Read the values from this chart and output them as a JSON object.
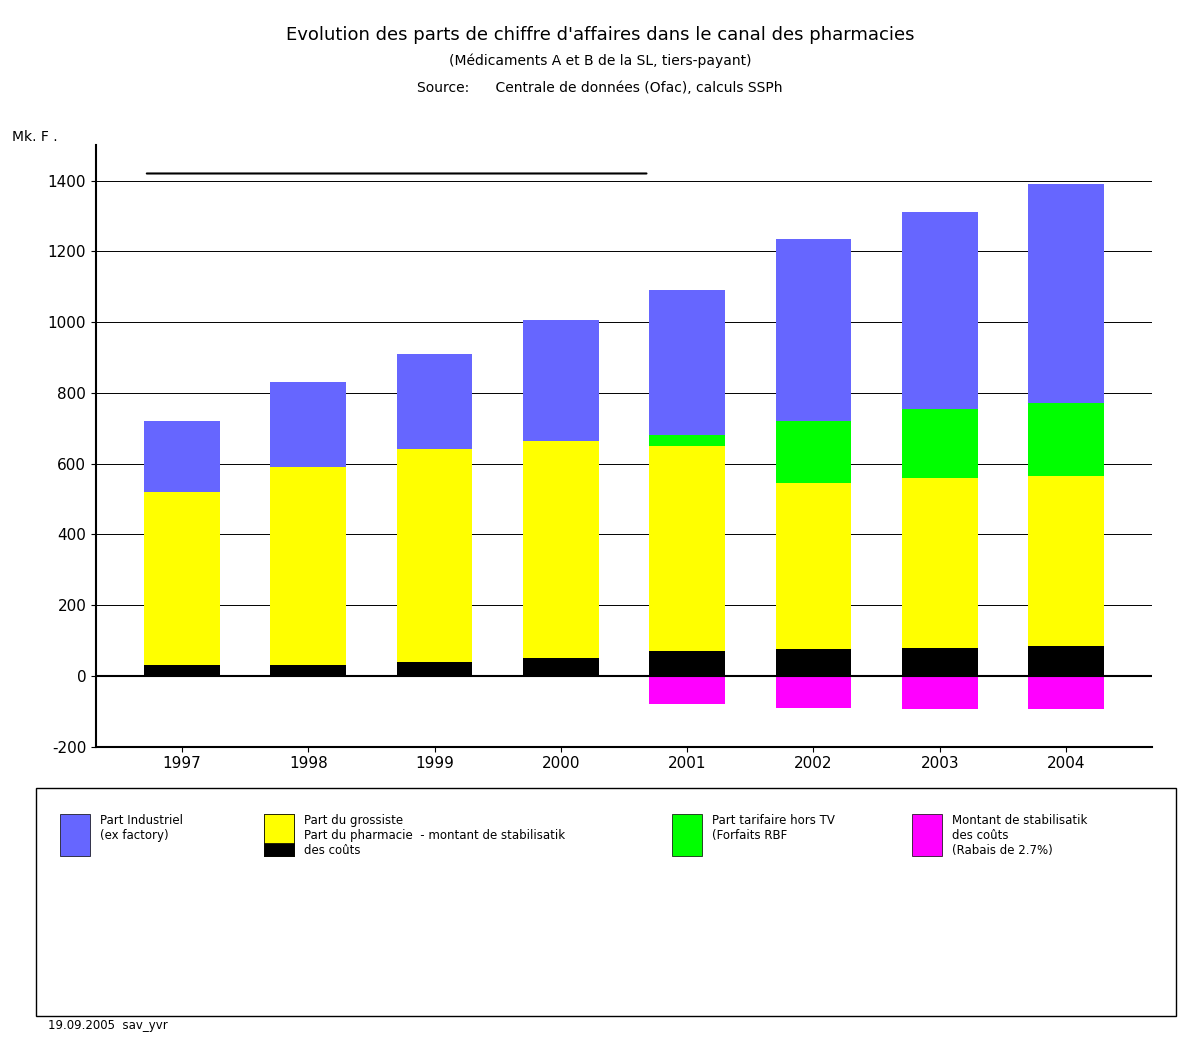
{
  "years": [
    "1997",
    "1998",
    "1999",
    "2000",
    "2001",
    "2002",
    "2003",
    "2004"
  ],
  "part_industriel": [
    720,
    830,
    910,
    1005,
    1090,
    1235,
    1310,
    1390
  ],
  "part_pharmacie": [
    490,
    560,
    600,
    615,
    580,
    470,
    480,
    480
  ],
  "part_grossiste": [
    30,
    30,
    40,
    50,
    70,
    75,
    80,
    85
  ],
  "part_tarifaire": [
    0,
    0,
    0,
    0,
    30,
    175,
    195,
    205
  ],
  "montant_stabilisation": [
    0,
    0,
    0,
    0,
    -80,
    -90,
    -95,
    -95
  ],
  "color_industriel": "#6666FF",
  "color_pharmacie": "#FFFF00",
  "color_grossiste": "#000000",
  "color_tarifaire": "#00FF00",
  "color_stabilisation": "#FF00FF",
  "title_line1": "Evolution des parts de chiffre d'affaires dans le canal des pharmacies",
  "title_line2": "(Médicaments A et B de la SL, tiers-payant)",
  "title_line3": "Source:      Centrale de données (Ofac), calculs SSPh",
  "ylabel": "Mk. F .",
  "ylim_min": -200,
  "ylim_max": 1500,
  "yticks": [
    -200,
    0,
    200,
    400,
    600,
    800,
    1000,
    1200,
    1400
  ],
  "legend_blue": "Part Industriel\n(ex factory)",
  "legend_black": "Part du grossiste",
  "legend_yellow": "Part du pharmacie  - montant de stabilisatik\ndes coûts",
  "legend_green": "Part tarifaire hors TV\n(Forfaits RBF",
  "legend_magenta": "Montant de stabilisatik\ndes coûts\n(Rabais de 2.7%)",
  "footnote": "19.09.2005  sav_yvr",
  "bar_width": 0.6,
  "background_color": "#FFFFFF"
}
